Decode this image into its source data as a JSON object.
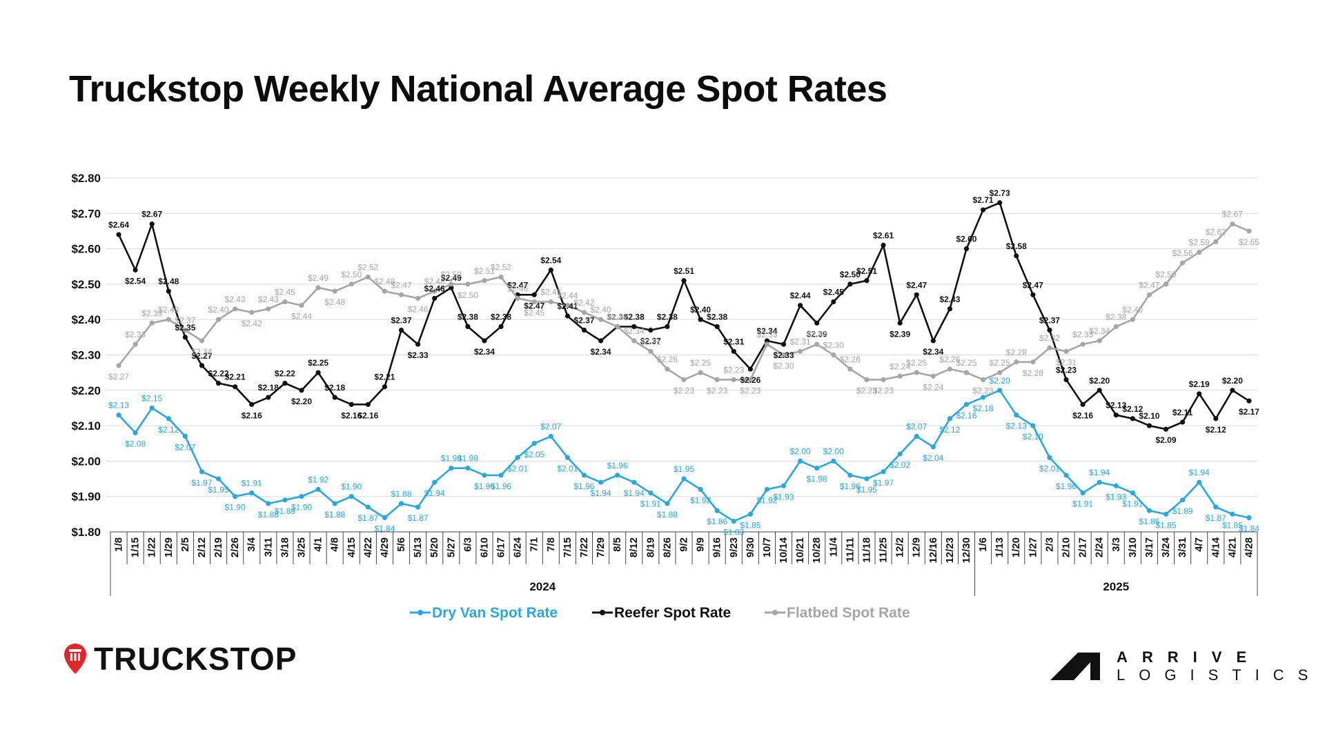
{
  "title": "Truckstop Weekly National Average Spot Rates",
  "brand_left": "TRUCKSTOP",
  "brand_right": {
    "line1": "ARRIVE",
    "line2": "LOGISTICS"
  },
  "colors": {
    "dry_van": "#29a8e0",
    "reefer": "#111111",
    "flatbed": "#a6a6a6",
    "grid": "#d9d9d9",
    "brand_red": "#e4262b"
  },
  "chart_data": {
    "type": "line",
    "ylim": [
      1.8,
      2.8
    ],
    "yticks": [
      "$2.80",
      "$2.70",
      "$2.60",
      "$2.50",
      "$2.40",
      "$2.30",
      "$2.20",
      "$2.10",
      "$2.00",
      "$1.90",
      "$1.80"
    ],
    "categories": [
      "1/8",
      "1/15",
      "1/22",
      "1/29",
      "2/5",
      "2/12",
      "2/19",
      "2/26",
      "3/4",
      "3/11",
      "3/18",
      "3/25",
      "4/1",
      "4/8",
      "4/15",
      "4/22",
      "4/29",
      "5/6",
      "5/13",
      "5/20",
      "5/27",
      "6/3",
      "6/10",
      "6/17",
      "6/24",
      "7/1",
      "7/8",
      "7/15",
      "7/22",
      "7/29",
      "8/5",
      "8/12",
      "8/19",
      "8/26",
      "9/2",
      "9/9",
      "9/16",
      "9/23",
      "9/30",
      "10/7",
      "10/14",
      "10/21",
      "10/28",
      "11/4",
      "11/11",
      "11/18",
      "11/25",
      "12/2",
      "12/9",
      "12/16",
      "12/23",
      "12/30",
      "1/6",
      "1/13",
      "1/20",
      "1/27",
      "2/3",
      "2/10",
      "2/17",
      "2/24",
      "3/3",
      "3/10",
      "3/17",
      "3/24",
      "3/31",
      "4/7",
      "4/14",
      "4/21",
      "4/28"
    ],
    "year_groups": [
      {
        "label": "2024",
        "count": 52
      },
      {
        "label": "2025",
        "count": 17
      }
    ],
    "legend": "bottom",
    "grid": true,
    "series": [
      {
        "name": "Dry Van Spot Rate",
        "color": "#29a8e0",
        "values": [
          2.13,
          2.08,
          2.15,
          2.12,
          2.07,
          1.97,
          1.95,
          1.9,
          1.91,
          1.88,
          1.89,
          1.9,
          1.92,
          1.88,
          1.9,
          1.87,
          1.84,
          1.88,
          1.87,
          1.94,
          1.98,
          1.98,
          1.96,
          1.96,
          2.01,
          2.05,
          2.07,
          2.01,
          1.96,
          1.94,
          1.96,
          1.94,
          1.91,
          1.88,
          1.95,
          1.92,
          1.86,
          1.83,
          1.85,
          1.92,
          1.93,
          2.0,
          1.98,
          2.0,
          1.96,
          1.95,
          1.97,
          2.02,
          2.07,
          2.04,
          2.12,
          2.16,
          2.18,
          2.2,
          2.13,
          2.1,
          2.01,
          1.96,
          1.91,
          1.94,
          1.93,
          1.91,
          1.86,
          1.85,
          1.89,
          1.94,
          1.87,
          1.85,
          1.84
        ],
        "labels": [
          "$2.13",
          "$2.08",
          "$2.15",
          "$2.12",
          "$2.07",
          "$1.97",
          "$1.95",
          "$1.90",
          "$1.91",
          "$1.88",
          "$1.89",
          "$1.90",
          "$1.92",
          "$1.88",
          "$1.90",
          "$1.87",
          "$1.84",
          "$1.88",
          "$1.87",
          "$1.94",
          "$1.98",
          "$1.98",
          "$1.96",
          "$1.96",
          "$2.01",
          "$2.05",
          "$2.07",
          "$2.01",
          "$1.96",
          "$1.94",
          "$1.96",
          "$1.94",
          "$1.91",
          "$1.88",
          "$1.95",
          "$1.92",
          "$1.86",
          "$1.83",
          "$1.85",
          "$1.92",
          "$1.93",
          "$2.00",
          "$1.98",
          "$2.00",
          "$1.96",
          "$1.95",
          "$1.97",
          "$2.02",
          "$2.07",
          "$2.04",
          "$2.12",
          "$2.16",
          "$2.18",
          "$2.20",
          "$2.13",
          "$2.10",
          "$2.01",
          "$1.96",
          "$1.91",
          "$1.94",
          "$1.93",
          "$1.91",
          "$1.86",
          "$1.85",
          "$1.89",
          "$1.94",
          "$1.87",
          "$1.85",
          "$1.84"
        ]
      },
      {
        "name": "Reefer Spot Rate",
        "color": "#111111",
        "values": [
          2.64,
          2.54,
          2.67,
          2.48,
          2.35,
          2.27,
          2.22,
          2.21,
          2.16,
          2.18,
          2.22,
          2.2,
          2.25,
          2.18,
          2.16,
          2.16,
          2.21,
          2.37,
          2.33,
          2.46,
          2.49,
          2.38,
          2.34,
          2.38,
          2.47,
          2.47,
          2.54,
          2.41,
          2.37,
          2.34,
          2.38,
          2.38,
          2.37,
          2.38,
          2.51,
          2.4,
          2.38,
          2.31,
          2.26,
          2.34,
          2.33,
          2.44,
          2.39,
          2.45,
          2.5,
          2.51,
          2.61,
          2.39,
          2.47,
          2.34,
          2.43,
          2.6,
          2.71,
          2.73,
          2.58,
          2.47,
          2.37,
          2.23,
          2.16,
          2.2,
          2.13,
          2.12,
          2.1,
          2.09,
          2.11,
          2.19,
          2.12,
          2.2,
          2.17
        ],
        "labels": [
          "$2.64",
          "$2.54",
          "$2.67",
          "$2.48",
          "$2.35",
          "$2.27",
          "$2.22",
          "$2.21",
          "$2.16",
          "$2.18",
          "$2.22",
          "$2.20",
          "$2.25",
          "$2.18",
          "$2.16",
          "$2.16",
          "$2.21",
          "$2.37",
          "$2.33",
          "$2.46",
          "$2.49",
          "$2.38",
          "$2.34",
          "$2.38",
          "$2.47",
          "$2.47",
          "$2.54",
          "$2.41",
          "$2.37",
          "$2.34",
          "$2.38",
          "$2.38",
          "$2.37",
          "$2.38",
          "$2.51",
          "$2.40",
          "$2.38",
          "$2.31",
          "$2.26",
          "$2.34",
          "$2.33",
          "$2.44",
          "$2.39",
          "$2.45",
          "$2.50",
          "$2.51",
          "$2.61",
          "$2.39",
          "$2.47",
          "$2.34",
          "$2.43",
          "$2.60",
          "$2.71",
          "$2.73",
          "$2.58",
          "$2.47",
          "$2.37",
          "$2.23",
          "$2.16",
          "$2.20",
          "$2.13",
          "$2.12",
          "$2.10",
          "$2.09",
          "$2.11",
          "$2.19",
          "$2.12",
          "$2.20",
          "$2.17"
        ]
      },
      {
        "name": "Flatbed Spot Rate",
        "color": "#a6a6a6",
        "values": [
          2.27,
          2.33,
          2.39,
          2.4,
          2.37,
          2.34,
          2.4,
          2.43,
          2.42,
          2.43,
          2.45,
          2.44,
          2.49,
          2.48,
          2.5,
          2.52,
          2.48,
          2.47,
          2.46,
          2.48,
          2.5,
          2.5,
          2.51,
          2.52,
          2.46,
          2.45,
          2.45,
          2.44,
          2.42,
          2.4,
          2.38,
          2.34,
          2.31,
          2.26,
          2.23,
          2.25,
          2.23,
          2.23,
          2.23,
          2.33,
          2.3,
          2.31,
          2.33,
          2.3,
          2.26,
          2.23,
          2.23,
          2.24,
          2.25,
          2.24,
          2.26,
          2.25,
          2.23,
          2.25,
          2.28,
          2.28,
          2.32,
          2.31,
          2.33,
          2.34,
          2.38,
          2.4,
          2.47,
          2.5,
          2.56,
          2.59,
          2.62,
          2.67,
          2.65
        ],
        "labels": [
          "$2.27",
          "$2.33",
          "$2.39",
          "$2.40",
          "$2.37",
          "$2.34",
          "$2.40",
          "$2.43",
          "$2.42",
          "$2.43",
          "$2.45",
          "$2.44",
          "$2.49",
          "$2.48",
          "$2.50",
          "$2.52",
          "$2.48",
          "$2.47",
          "$2.46",
          "$2.48",
          "$2.50",
          "$2.50",
          "$2.51",
          "$2.52",
          "$2.46",
          "$2.45",
          "$2.45",
          "$2.44",
          "$2.42",
          "$2.40",
          "$2.38",
          "$2.34",
          "$2.31",
          "$2.26",
          "$2.23",
          "$2.25",
          "$2.23",
          "$2.23",
          "$2.23",
          "$2.33",
          "$2.30",
          "$2.31",
          "$2.33",
          "$2.30",
          "$2.26",
          "$2.23",
          "$2.23",
          "$2.24",
          "$2.25",
          "$2.24",
          "$2.26",
          "$2.25",
          "$2.23",
          "$2.25",
          "$2.28",
          "$2.28",
          "$2.32",
          "$2.31",
          "$2.33",
          "$2.34",
          "$2.38",
          "$2.40",
          "$2.47",
          "$2.50",
          "$2.56",
          "$2.59",
          "$2.62",
          "$2.67",
          "$2.65"
        ]
      }
    ]
  }
}
